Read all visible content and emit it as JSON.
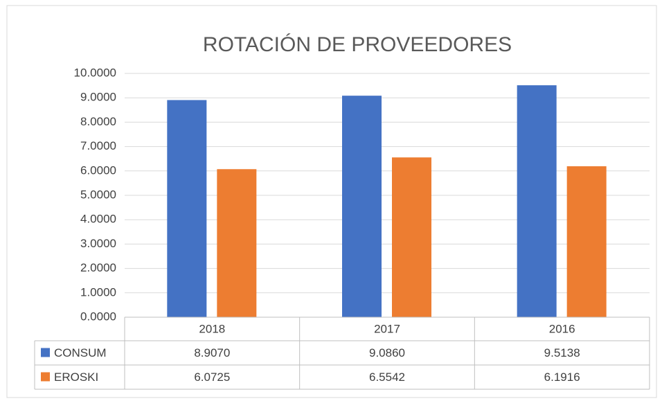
{
  "chart_data": {
    "type": "bar",
    "title": "ROTACIÓN DE PROVEEDORES",
    "categories": [
      "2018",
      "2017",
      "2016"
    ],
    "series": [
      {
        "name": "CONSUM",
        "color": "#4472c4",
        "values": [
          8.907,
          9.086,
          9.5138
        ],
        "value_labels": [
          "8.9070",
          "9.0860",
          "9.5138"
        ]
      },
      {
        "name": "EROSKI",
        "color": "#ed7d31",
        "values": [
          6.0725,
          6.5542,
          6.1916
        ],
        "value_labels": [
          "6.0725",
          "6.5542",
          "6.1916"
        ]
      }
    ],
    "ylim": [
      0,
      10
    ],
    "yticks": [
      {
        "value": 0,
        "label": "0.0000"
      },
      {
        "value": 1,
        "label": "1.0000"
      },
      {
        "value": 2,
        "label": "2.0000"
      },
      {
        "value": 3,
        "label": "3.0000"
      },
      {
        "value": 4,
        "label": "4.0000"
      },
      {
        "value": 5,
        "label": "5.0000"
      },
      {
        "value": 6,
        "label": "6.0000"
      },
      {
        "value": 7,
        "label": "7.0000"
      },
      {
        "value": 8,
        "label": "8.0000"
      },
      {
        "value": 9,
        "label": "9.0000"
      },
      {
        "value": 10,
        "label": "10.0000"
      }
    ],
    "grid": true,
    "data_table": true
  }
}
